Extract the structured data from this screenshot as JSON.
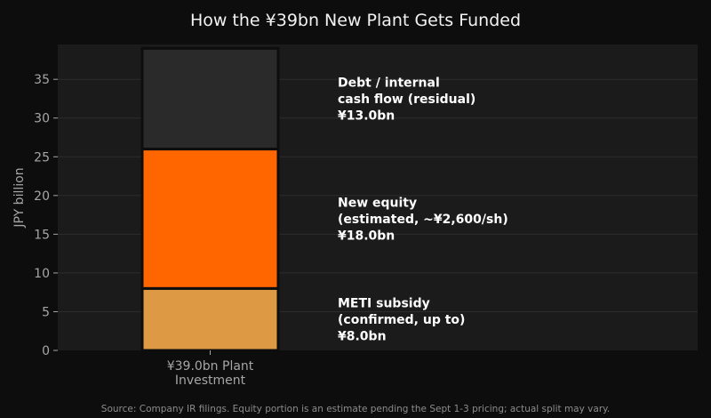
{
  "chart_data": {
    "type": "bar",
    "stacked": true,
    "title": "How the ¥39bn New Plant Gets Funded",
    "ylabel": "JPY billion",
    "xlabel": "",
    "ylim": [
      0,
      39.5
    ],
    "yticks": [
      0,
      5,
      10,
      15,
      20,
      25,
      30,
      35
    ],
    "grid": true,
    "categories": [
      "¥39.0bn Plant\nInvestment"
    ],
    "series": [
      {
        "values": [
          8.0
        ],
        "color": "#dd9944",
        "annotation": [
          "METI subsidy",
          "(confirmed, up to)",
          "¥8.0bn"
        ]
      },
      {
        "values": [
          18.0
        ],
        "color": "#ff6600",
        "annotation": [
          "New equity",
          "(estimated, ~¥2,600/sh)",
          "¥18.0bn"
        ]
      },
      {
        "values": [
          13.0
        ],
        "color": "#2a2a2a",
        "annotation": [
          "Debt / internal",
          "cash flow (residual)",
          "¥13.0bn"
        ]
      }
    ]
  },
  "source_note": "Source: Company IR filings. Equity portion is an estimate pending the Sept 1-3 pricing; actual split may vary."
}
